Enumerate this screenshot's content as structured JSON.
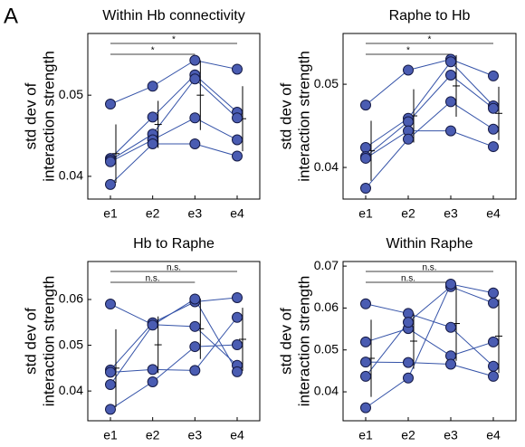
{
  "panel_label": "A",
  "chart_data": [
    {
      "type": "line",
      "title": "Within Hb connectivity",
      "ylabel": [
        "std dev of",
        "interaction strength"
      ],
      "categories": [
        "e1",
        "e2",
        "e3",
        "e4"
      ],
      "ylim": [
        0.0372,
        0.0576
      ],
      "yticks": [
        0.04,
        0.05
      ],
      "series": [
        {
          "color": "#3553a8",
          "values": [
            0.0489,
            0.0511,
            0.0543,
            0.0532
          ]
        },
        {
          "color": "#3553a8",
          "values": [
            0.0422,
            0.0473,
            0.0525,
            0.0479
          ]
        },
        {
          "color": "#3553a8",
          "values": [
            0.042,
            0.0452,
            0.052,
            0.0472
          ]
        },
        {
          "color": "#3553a8",
          "values": [
            0.0418,
            0.0445,
            0.0472,
            0.0445
          ]
        },
        {
          "color": "#3553a8",
          "values": [
            0.039,
            0.044,
            0.044,
            0.0425
          ]
        }
      ],
      "error_bars": {
        "values": [
          0.0428,
          0.0464,
          0.05,
          0.0471
        ],
        "errors": [
          0.0036,
          0.0029,
          0.0043,
          0.004
        ]
      },
      "brackets": [
        {
          "from": 0,
          "to": 2,
          "label": "*"
        },
        {
          "from": 0,
          "to": 3,
          "label": "*"
        }
      ]
    },
    {
      "type": "line",
      "title": "Raphe to Hb",
      "ylabel": [
        "std dev of",
        "interaction strength"
      ],
      "categories": [
        "e1",
        "e2",
        "e3",
        "e4"
      ],
      "ylim": [
        0.0362,
        0.0561
      ],
      "yticks": [
        0.04,
        0.05
      ],
      "series": [
        {
          "color": "#3553a8",
          "values": [
            0.0475,
            0.0517,
            0.053,
            0.051
          ]
        },
        {
          "color": "#3553a8",
          "values": [
            0.0424,
            0.0459,
            0.0527,
            0.0474
          ]
        },
        {
          "color": "#3553a8",
          "values": [
            0.0413,
            0.0455,
            0.0511,
            0.0471
          ]
        },
        {
          "color": "#3553a8",
          "values": [
            0.0411,
            0.0444,
            0.0444,
            0.0425
          ]
        },
        {
          "color": "#3553a8",
          "values": [
            0.0375,
            0.0434,
            0.0479,
            0.0446
          ]
        }
      ],
      "error_bars": {
        "values": [
          0.042,
          0.0462,
          0.0498,
          0.0465
        ],
        "errors": [
          0.0036,
          0.0032,
          0.0037,
          0.0032
        ]
      },
      "brackets": [
        {
          "from": 0,
          "to": 2,
          "label": "*"
        },
        {
          "from": 0,
          "to": 3,
          "label": "*"
        }
      ]
    },
    {
      "type": "line",
      "title": "Hb to Raphe",
      "ylabel": [
        "std dev of",
        "interaction strength"
      ],
      "categories": [
        "e1",
        "e2",
        "e3",
        "e4"
      ],
      "ylim": [
        0.0335,
        0.0683
      ],
      "yticks": [
        0.04,
        0.05,
        0.06
      ],
      "series": [
        {
          "color": "#3553a8",
          "values": [
            0.059,
            0.0545,
            0.0541,
            0.0456
          ]
        },
        {
          "color": "#3553a8",
          "values": [
            0.0446,
            0.0549,
            0.0595,
            0.0604
          ]
        },
        {
          "color": "#3553a8",
          "values": [
            0.0441,
            0.0447,
            0.0445,
            0.0561
          ]
        },
        {
          "color": "#3553a8",
          "values": [
            0.0414,
            0.0544,
            0.0601,
            0.0442
          ]
        },
        {
          "color": "#3553a8",
          "values": [
            0.036,
            0.042,
            0.0497,
            0.0501
          ]
        }
      ],
      "error_bars": {
        "values": [
          0.045,
          0.0501,
          0.0536,
          0.0513
        ],
        "errors": [
          0.0085,
          0.0062,
          0.0066,
          0.0069
        ]
      },
      "brackets": [
        {
          "from": 0,
          "to": 2,
          "label": "n.s."
        },
        {
          "from": 0,
          "to": 3,
          "label": "n.s."
        }
      ]
    },
    {
      "type": "line",
      "title": "Within Raphe",
      "ylabel": [
        "std dev of",
        "interaction strength"
      ],
      "categories": [
        "e1",
        "e2",
        "e3",
        "e4"
      ],
      "ylim": [
        0.0331,
        0.0711
      ],
      "yticks": [
        0.04,
        0.05,
        0.06,
        0.07
      ],
      "series": [
        {
          "color": "#3553a8",
          "values": [
            0.061,
            0.0587,
            0.0554,
            0.0461
          ]
        },
        {
          "color": "#3553a8",
          "values": [
            0.0519,
            0.0551,
            0.0486,
            0.0519
          ]
        },
        {
          "color": "#3553a8",
          "values": [
            0.0471,
            0.047,
            0.0466,
            0.0437
          ]
        },
        {
          "color": "#3553a8",
          "values": [
            0.0437,
            0.0566,
            0.0651,
            0.0612
          ]
        },
        {
          "color": "#3553a8",
          "values": [
            0.0362,
            0.0433,
            0.0657,
            0.0636
          ]
        }
      ],
      "error_bars": {
        "values": [
          0.048,
          0.0521,
          0.0563,
          0.0533
        ],
        "errors": [
          0.0092,
          0.0066,
          0.0089,
          0.0088
        ]
      },
      "brackets": [
        {
          "from": 0,
          "to": 2,
          "label": "n.s."
        },
        {
          "from": 0,
          "to": 3,
          "label": "n.s."
        }
      ]
    }
  ]
}
